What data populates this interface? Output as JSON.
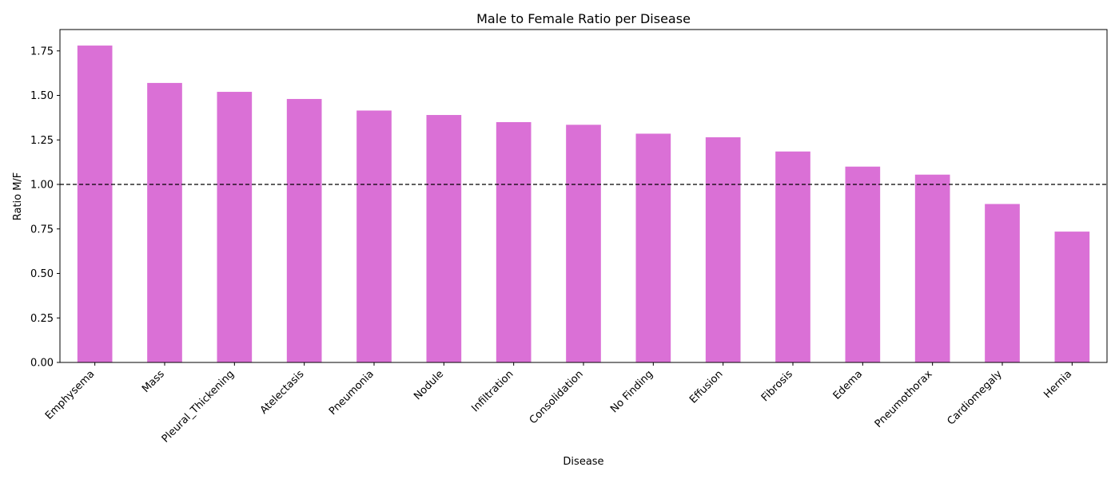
{
  "chart_data": {
    "type": "bar",
    "title": "Male to Female Ratio per Disease",
    "xlabel": "Disease",
    "ylabel": "Ratio M/F",
    "ylim": [
      0,
      1.87
    ],
    "yticks": [
      "0.00",
      "0.25",
      "0.50",
      "0.75",
      "1.00",
      "1.25",
      "1.50",
      "1.75"
    ],
    "grid": false,
    "bar_color": "#da70d6",
    "reference_line": {
      "y": 1.0,
      "style": "dashed",
      "color": "#000000"
    },
    "categories": [
      "Emphysema",
      "Mass",
      "Pleural_Thickening",
      "Atelectasis",
      "Pneumonia",
      "Nodule",
      "Infiltration",
      "Consolidation",
      "No Finding",
      "Effusion",
      "Fibrosis",
      "Edema",
      "Pneumothorax",
      "Cardiomegaly",
      "Hernia"
    ],
    "values": [
      1.78,
      1.57,
      1.52,
      1.48,
      1.415,
      1.39,
      1.35,
      1.335,
      1.285,
      1.265,
      1.185,
      1.1,
      1.055,
      0.89,
      0.735
    ]
  }
}
